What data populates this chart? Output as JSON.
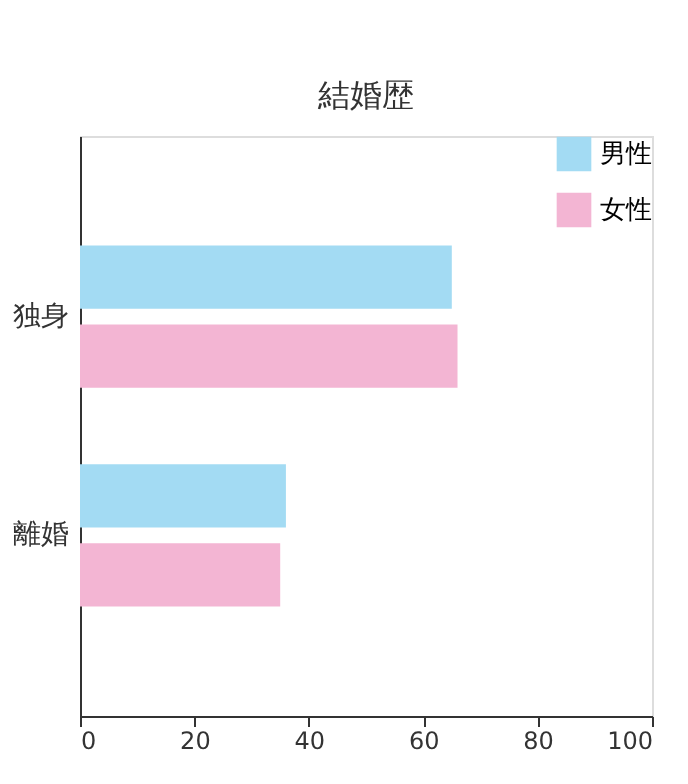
{
  "chart_data": {
    "type": "bar",
    "orientation": "horizontal",
    "title": "結婚歴",
    "categories": [
      "独身",
      "離婚"
    ],
    "series": [
      {
        "name": "男性",
        "color": "#a3dbf3",
        "values": [
          65,
          36
        ]
      },
      {
        "name": "女性",
        "color": "#f3b5d3",
        "values": [
          66,
          35
        ]
      }
    ],
    "xlim": [
      0,
      100
    ],
    "xticks": [
      0,
      20,
      40,
      60,
      80,
      100
    ],
    "grid": false,
    "legend": "top right"
  }
}
